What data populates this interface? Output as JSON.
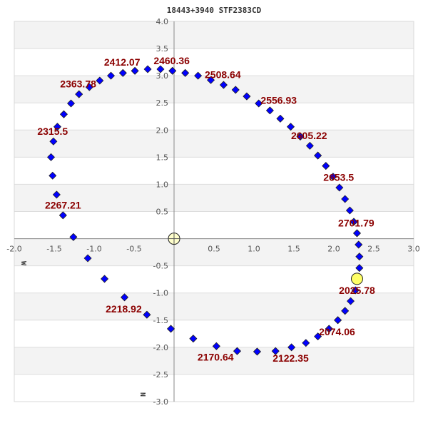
{
  "chart_data": {
    "type": "scatter",
    "title": "18443+3940 STF2383CD",
    "xlabel": "W",
    "ylabel": "N",
    "xlim": [
      -2.0,
      3.0
    ],
    "ylim": [
      -3.0,
      4.0
    ],
    "x_ticks": [
      "-2.0",
      "-1.5",
      "-1.0",
      "-0.5",
      "0.5",
      "1.0",
      "1.5",
      "2.0",
      "2.5",
      "3.0"
    ],
    "x_tick_values": [
      -2.0,
      -1.5,
      -1.0,
      -0.5,
      0.5,
      1.0,
      1.5,
      2.0,
      2.5,
      3.0
    ],
    "y_ticks": [
      "4.0",
      "3.5",
      "3.0",
      "2.5",
      "2.0",
      "1.5",
      "1.0",
      "0.5",
      "-0.5",
      "-1.0",
      "-1.5",
      "-2.0",
      "-2.5",
      "-3.0"
    ],
    "y_tick_values": [
      4.0,
      3.5,
      3.0,
      2.5,
      2.0,
      1.5,
      1.0,
      0.5,
      -0.5,
      -1.0,
      -1.5,
      -2.0,
      -2.5,
      -3.0
    ],
    "grid": true,
    "colors": {
      "points": "#0000ff",
      "labels": "#8b0000",
      "primary": "#ffffcc",
      "current": "#ffff66",
      "band": "#f3f3f3",
      "grid": "#dddddd"
    },
    "primary": {
      "x": 0,
      "y": 0
    },
    "current_position": {
      "x": 2.29,
      "y": -0.74
    },
    "orbit_points": [
      [
        2.27,
        -0.95
      ],
      [
        2.21,
        -1.15
      ],
      [
        2.14,
        -1.33
      ],
      [
        2.05,
        -1.5
      ],
      [
        1.94,
        -1.66
      ],
      [
        1.8,
        -1.8
      ],
      [
        1.65,
        -1.92
      ],
      [
        1.47,
        -2.0
      ],
      [
        1.27,
        -2.07
      ],
      [
        1.04,
        -2.08
      ],
      [
        0.79,
        -2.07
      ],
      [
        0.53,
        -1.98
      ],
      [
        0.24,
        -1.84
      ],
      [
        -0.04,
        -1.66
      ],
      [
        -0.34,
        -1.4
      ],
      [
        -0.62,
        -1.08
      ],
      [
        -0.87,
        -0.74
      ],
      [
        -1.08,
        -0.36
      ],
      [
        -1.26,
        0.03
      ],
      [
        -1.39,
        0.43
      ],
      [
        -1.47,
        0.81
      ],
      [
        -1.52,
        1.16
      ],
      [
        -1.54,
        1.5
      ],
      [
        -1.51,
        1.79
      ],
      [
        -1.46,
        2.06
      ],
      [
        -1.38,
        2.29
      ],
      [
        -1.29,
        2.49
      ],
      [
        -1.19,
        2.66
      ],
      [
        -1.06,
        2.79
      ],
      [
        -0.93,
        2.91
      ],
      [
        -0.79,
        3.0
      ],
      [
        -0.64,
        3.05
      ],
      [
        -0.49,
        3.09
      ],
      [
        -0.33,
        3.12
      ],
      [
        -0.17,
        3.12
      ],
      [
        -0.02,
        3.09
      ],
      [
        0.14,
        3.05
      ],
      [
        0.3,
        3.0
      ],
      [
        0.46,
        2.92
      ],
      [
        0.62,
        2.83
      ],
      [
        0.77,
        2.74
      ],
      [
        0.91,
        2.62
      ],
      [
        1.06,
        2.49
      ],
      [
        1.2,
        2.36
      ],
      [
        1.33,
        2.21
      ],
      [
        1.46,
        2.06
      ],
      [
        1.58,
        1.88
      ],
      [
        1.7,
        1.71
      ],
      [
        1.8,
        1.53
      ],
      [
        1.9,
        1.34
      ],
      [
        1.99,
        1.14
      ],
      [
        2.07,
        0.94
      ],
      [
        2.14,
        0.73
      ],
      [
        2.2,
        0.52
      ],
      [
        2.25,
        0.31
      ],
      [
        2.29,
        0.1
      ],
      [
        2.31,
        -0.11
      ],
      [
        2.32,
        -0.33
      ],
      [
        2.32,
        -0.54
      ]
    ],
    "epoch_labels": [
      {
        "text": "2025.78",
        "x": 2.29,
        "y": -0.95
      },
      {
        "text": "2074.06",
        "x": 2.04,
        "y": -1.71
      },
      {
        "text": "2122.35",
        "x": 1.46,
        "y": -2.2
      },
      {
        "text": "2170.64",
        "x": 0.52,
        "y": -2.18
      },
      {
        "text": "2218.92",
        "x": -0.63,
        "y": -1.29
      },
      {
        "text": "2267.21",
        "x": -1.39,
        "y": 0.62
      },
      {
        "text": "2315.5",
        "x": -1.52,
        "y": 1.98
      },
      {
        "text": "2363.78",
        "x": -1.2,
        "y": 2.85
      },
      {
        "text": "2412.07",
        "x": -0.65,
        "y": 3.25
      },
      {
        "text": "2460.36",
        "x": -0.03,
        "y": 3.28
      },
      {
        "text": "2508.64",
        "x": 0.61,
        "y": 3.02
      },
      {
        "text": "2556.93",
        "x": 1.31,
        "y": 2.55
      },
      {
        "text": "2605.22",
        "x": 1.69,
        "y": 1.9
      },
      {
        "text": "2653.5",
        "x": 2.06,
        "y": 1.13
      },
      {
        "text": "2701.79",
        "x": 2.28,
        "y": 0.29
      }
    ]
  }
}
